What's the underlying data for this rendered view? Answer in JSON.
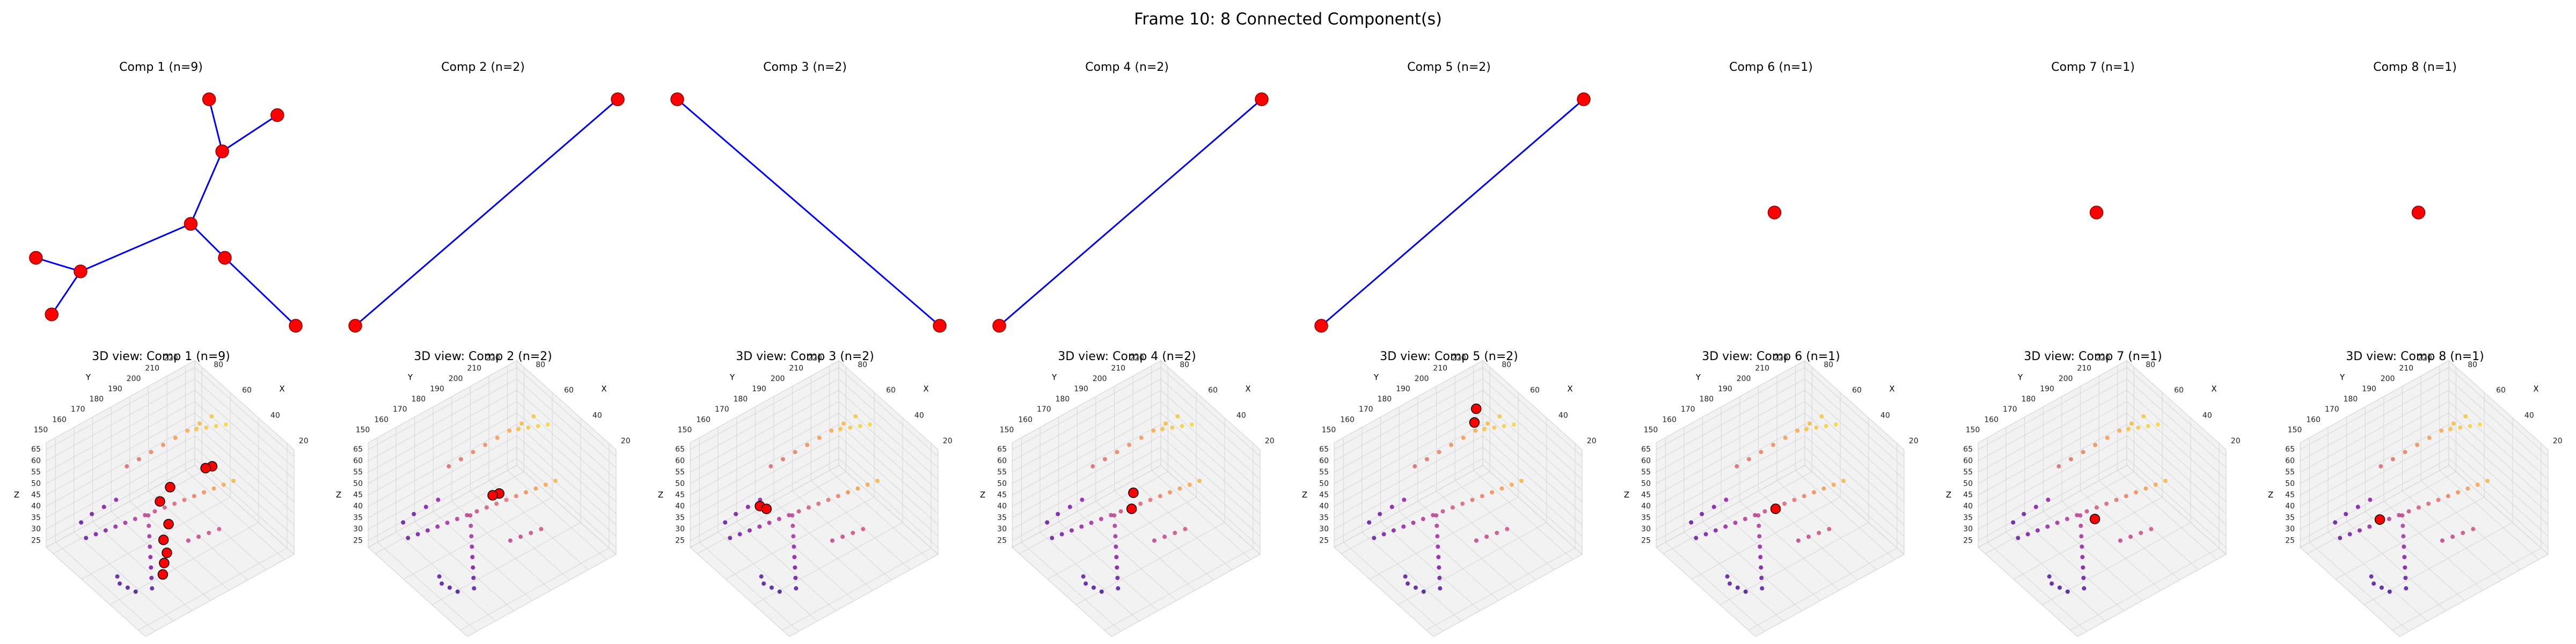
{
  "title": "Frame 10: 8 Connected Component(s)",
  "components": [
    {
      "title": "Comp 1 (n=9)"
    },
    {
      "title": "Comp 2 (n=2)"
    },
    {
      "title": "Comp 3 (n=2)"
    },
    {
      "title": "Comp 4 (n=2)"
    },
    {
      "title": "Comp 5 (n=2)"
    },
    {
      "title": "Comp 6 (n=1)"
    },
    {
      "title": "Comp 7 (n=1)"
    },
    {
      "title": "Comp 8 (n=1)"
    }
  ],
  "cloud": {
    "x": [
      25,
      28,
      31,
      34,
      37,
      40,
      43,
      46,
      49,
      52,
      55,
      58,
      61,
      64,
      67,
      70,
      30,
      33,
      36,
      39,
      42,
      45,
      48,
      51,
      60,
      62,
      64,
      66,
      68,
      70,
      72,
      74,
      22,
      24,
      26,
      28,
      50,
      53,
      56,
      59,
      35,
      38,
      41,
      44,
      75,
      77,
      79,
      80
    ],
    "y": [
      200,
      197,
      194,
      191,
      188,
      185,
      182,
      179,
      176,
      173,
      170,
      167,
      164,
      161,
      158,
      155,
      160,
      162,
      164,
      166,
      168,
      170,
      172,
      174,
      215,
      210,
      205,
      200,
      195,
      190,
      185,
      180,
      190,
      186,
      182,
      178,
      215,
      212,
      209,
      206,
      155,
      153,
      151,
      152,
      175,
      170,
      165,
      160
    ],
    "z": [
      60,
      58,
      56,
      54,
      52,
      50,
      48,
      46,
      44,
      42,
      40,
      38,
      36,
      34,
      32,
      30,
      28,
      30,
      32,
      34,
      36,
      38,
      40,
      42,
      62,
      60,
      58,
      56,
      54,
      52,
      50,
      48,
      45,
      44,
      43,
      42,
      64,
      63,
      62,
      61,
      26,
      27,
      28,
      29,
      35,
      33,
      31,
      29
    ]
  },
  "chart_data": [
    {
      "type": "scatter3d",
      "title": "3D view: Comp 1 (n=9)",
      "xlabel": "X",
      "ylabel": "Y",
      "zlabel": "Z",
      "xlim": [
        15,
        85
      ],
      "ylim": [
        145,
        225
      ],
      "zlim": [
        22,
        68
      ],
      "xticks": [
        20,
        40,
        60,
        80
      ],
      "yticks": [
        150,
        160,
        170,
        180,
        190,
        200,
        210,
        220
      ],
      "zticks": [
        25,
        30,
        35,
        40,
        45,
        50,
        55,
        60,
        65
      ],
      "highlight_color": "#ff0000",
      "highlight": {
        "x": [
          40,
          42,
          50,
          48,
          38,
          35,
          30,
          28,
          25
        ],
        "y": [
          200,
          198,
          185,
          178,
          175,
          170,
          168,
          165,
          162
        ],
        "z": [
          58,
          57,
          50,
          48,
          45,
          42,
          40,
          38,
          36
        ]
      }
    },
    {
      "type": "scatter3d",
      "title": "3D view: Comp 2 (n=2)",
      "xlabel": "X",
      "ylabel": "Y",
      "zlabel": "Z",
      "xlim": [
        15,
        85
      ],
      "ylim": [
        145,
        225
      ],
      "zlim": [
        22,
        68
      ],
      "xticks": [
        20,
        40,
        60,
        80
      ],
      "yticks": [
        150,
        160,
        170,
        180,
        190,
        200,
        210,
        220
      ],
      "zticks": [
        25,
        30,
        35,
        40,
        45,
        50,
        55,
        60,
        65
      ],
      "highlight_color": "#ff0000",
      "highlight": {
        "x": [
          45,
          47
        ],
        "y": [
          185,
          183
        ],
        "z": [
          50,
          49
        ]
      }
    },
    {
      "type": "scatter3d",
      "title": "3D view: Comp 3 (n=2)",
      "xlabel": "X",
      "ylabel": "Y",
      "zlabel": "Z",
      "xlim": [
        15,
        85
      ],
      "ylim": [
        145,
        225
      ],
      "zlim": [
        22,
        68
      ],
      "xticks": [
        20,
        40,
        60,
        80
      ],
      "yticks": [
        150,
        160,
        170,
        180,
        190,
        200,
        210,
        220
      ],
      "zticks": [
        25,
        30,
        35,
        40,
        45,
        50,
        55,
        60,
        65
      ],
      "highlight_color": "#ff0000",
      "highlight": {
        "x": [
          62,
          60
        ],
        "y": [
          165,
          167
        ],
        "z": [
          44,
          43
        ]
      }
    },
    {
      "type": "scatter3d",
      "title": "3D view: Comp 4 (n=2)",
      "xlabel": "X",
      "ylabel": "Y",
      "zlabel": "Z",
      "xlim": [
        15,
        85
      ],
      "ylim": [
        145,
        225
      ],
      "zlim": [
        22,
        68
      ],
      "xticks": [
        20,
        40,
        60,
        80
      ],
      "yticks": [
        150,
        160,
        170,
        180,
        190,
        200,
        210,
        220
      ],
      "zticks": [
        25,
        30,
        35,
        40,
        45,
        50,
        55,
        60,
        65
      ],
      "highlight_color": "#ff0000",
      "highlight": {
        "x": [
          48,
          44
        ],
        "y": [
          182,
          178
        ],
        "z": [
          50,
          47
        ]
      }
    },
    {
      "type": "scatter3d",
      "title": "3D view: Comp 5 (n=2)",
      "xlabel": "X",
      "ylabel": "Y",
      "zlabel": "Z",
      "xlim": [
        15,
        85
      ],
      "ylim": [
        145,
        225
      ],
      "zlim": [
        22,
        68
      ],
      "xticks": [
        20,
        40,
        60,
        80
      ],
      "yticks": [
        150,
        160,
        170,
        180,
        190,
        200,
        210,
        220
      ],
      "zticks": [
        25,
        30,
        35,
        40,
        45,
        50,
        55,
        60,
        65
      ],
      "highlight_color": "#ff0000",
      "highlight": {
        "x": [
          70,
          66
        ],
        "y": [
          210,
          206
        ],
        "z": [
          62,
          60
        ]
      }
    },
    {
      "type": "scatter3d",
      "title": "3D view: Comp 6 (n=1)",
      "xlabel": "X",
      "ylabel": "Y",
      "zlabel": "Z",
      "xlim": [
        15,
        85
      ],
      "ylim": [
        145,
        225
      ],
      "zlim": [
        22,
        68
      ],
      "xticks": [
        20,
        40,
        60,
        80
      ],
      "yticks": [
        150,
        160,
        170,
        180,
        190,
        200,
        210,
        220
      ],
      "zticks": [
        25,
        30,
        35,
        40,
        45,
        50,
        55,
        60,
        65
      ],
      "highlight_color": "#ff0000",
      "highlight": {
        "x": [
          44
        ],
        "y": [
          178
        ],
        "z": [
          47
        ]
      }
    },
    {
      "type": "scatter3d",
      "title": "3D view: Comp 7 (n=1)",
      "xlabel": "X",
      "ylabel": "Y",
      "zlabel": "Z",
      "xlim": [
        15,
        85
      ],
      "ylim": [
        145,
        225
      ],
      "zlim": [
        22,
        68
      ],
      "xticks": [
        20,
        40,
        60,
        80
      ],
      "yticks": [
        150,
        160,
        170,
        180,
        190,
        200,
        210,
        220
      ],
      "zticks": [
        25,
        30,
        35,
        40,
        45,
        50,
        55,
        60,
        65
      ],
      "highlight_color": "#ff0000",
      "highlight": {
        "x": [
          42
        ],
        "y": [
          175
        ],
        "z": [
          45
        ]
      }
    },
    {
      "type": "scatter3d",
      "title": "3D view: Comp 8 (n=1)",
      "xlabel": "X",
      "ylabel": "Y",
      "zlabel": "Z",
      "xlim": [
        15,
        85
      ],
      "ylim": [
        145,
        225
      ],
      "zlim": [
        22,
        68
      ],
      "xticks": [
        20,
        40,
        60,
        80
      ],
      "yticks": [
        150,
        160,
        170,
        180,
        190,
        200,
        210,
        220
      ],
      "zticks": [
        25,
        30,
        35,
        40,
        45,
        50,
        55,
        60,
        65
      ],
      "highlight_color": "#ff0000",
      "highlight": {
        "x": [
          55
        ],
        "y": [
          165
        ],
        "z": [
          42
        ]
      }
    }
  ]
}
